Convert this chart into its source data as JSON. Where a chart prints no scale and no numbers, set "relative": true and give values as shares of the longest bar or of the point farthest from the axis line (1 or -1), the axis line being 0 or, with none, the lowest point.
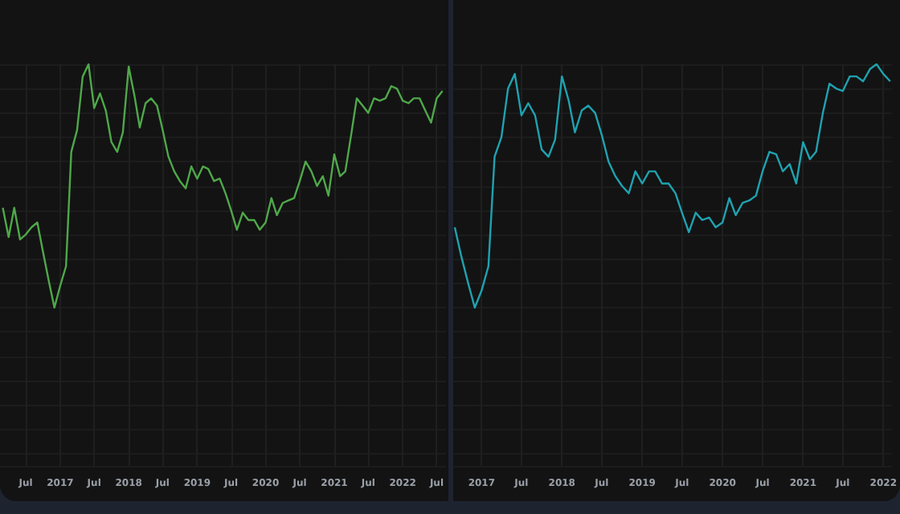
{
  "chart_data": [
    {
      "type": "line",
      "relative": true,
      "grid": true,
      "marker": "none",
      "line_style": "solid",
      "xlim": [
        "2016-02-15",
        "2022-08-20"
      ],
      "xticks": [
        {
          "value": "2016-07",
          "label": "Jul"
        },
        {
          "value": "2017-01",
          "label": "2017"
        },
        {
          "value": "2017-07",
          "label": "Jul"
        },
        {
          "value": "2018-01",
          "label": "2018"
        },
        {
          "value": "2018-07",
          "label": "Jul"
        },
        {
          "value": "2019-01",
          "label": "2019"
        },
        {
          "value": "2019-07",
          "label": "Jul"
        },
        {
          "value": "2020-01",
          "label": "2020"
        },
        {
          "value": "2020-07",
          "label": "Jul"
        },
        {
          "value": "2021-01",
          "label": "2021"
        },
        {
          "value": "2021-07",
          "label": "Jul"
        },
        {
          "value": "2022-01",
          "label": "2022"
        },
        {
          "value": "2022-07",
          "label": "Jul"
        }
      ],
      "x": [
        "2016-03",
        "2016-04",
        "2016-05",
        "2016-06",
        "2016-07",
        "2016-08",
        "2016-09",
        "2016-10",
        "2016-11",
        "2016-12",
        "2017-01",
        "2017-02",
        "2017-03",
        "2017-04",
        "2017-05",
        "2017-06",
        "2017-07",
        "2017-08",
        "2017-09",
        "2017-10",
        "2017-11",
        "2017-12",
        "2018-01",
        "2018-02",
        "2018-03",
        "2018-04",
        "2018-05",
        "2018-06",
        "2018-07",
        "2018-08",
        "2018-09",
        "2018-10",
        "2018-11",
        "2018-12",
        "2019-01",
        "2019-02",
        "2019-03",
        "2019-04",
        "2019-05",
        "2019-06",
        "2019-07",
        "2019-08",
        "2019-09",
        "2019-10",
        "2019-11",
        "2019-12",
        "2020-01",
        "2020-02",
        "2020-03",
        "2020-04",
        "2020-05",
        "2020-06",
        "2020-07",
        "2020-08",
        "2020-09",
        "2020-10",
        "2020-11",
        "2020-12",
        "2021-01",
        "2021-02",
        "2021-03",
        "2021-04",
        "2021-05",
        "2021-06",
        "2021-07",
        "2021-08",
        "2021-09",
        "2021-10",
        "2021-11",
        "2021-12",
        "2022-01",
        "2022-02",
        "2022-03",
        "2022-04",
        "2022-05",
        "2022-06",
        "2022-07",
        "2022-08"
      ],
      "series": [
        {
          "color": "#4fa84a",
          "values": [
            0.41,
            0.29,
            0.41,
            0.28,
            0.3,
            0.33,
            0.35,
            0.23,
            0.11,
            0,
            0.09,
            0.17,
            0.64,
            0.73,
            0.95,
            1,
            0.82,
            0.88,
            0.81,
            0.68,
            0.64,
            0.72,
            0.99,
            0.87,
            0.74,
            0.84,
            0.86,
            0.83,
            0.73,
            0.62,
            0.56,
            0.52,
            0.49,
            0.58,
            0.53,
            0.58,
            0.57,
            0.52,
            0.53,
            0.47,
            0.4,
            0.32,
            0.39,
            0.36,
            0.36,
            0.32,
            0.35,
            0.45,
            0.38,
            0.43,
            0.44,
            0.45,
            0.52,
            0.6,
            0.56,
            0.5,
            0.54,
            0.46,
            0.63,
            0.54,
            0.56,
            0.71,
            0.86,
            0.83,
            0.8,
            0.86,
            0.85,
            0.86,
            0.91,
            0.9,
            0.85,
            0.84,
            0.86,
            0.86,
            0.81,
            0.76,
            0.86,
            0.89
          ]
        }
      ]
    },
    {
      "type": "line",
      "relative": true,
      "grid": true,
      "marker": "none",
      "line_style": "solid",
      "xlim": [
        "2016-08-25",
        "2022-02-08"
      ],
      "xticks": [
        {
          "value": "2017-01",
          "label": "2017"
        },
        {
          "value": "2017-07",
          "label": "Jul"
        },
        {
          "value": "2018-01",
          "label": "2018"
        },
        {
          "value": "2018-07",
          "label": "Jul"
        },
        {
          "value": "2019-01",
          "label": "2019"
        },
        {
          "value": "2019-07",
          "label": "Jul"
        },
        {
          "value": "2020-01",
          "label": "2020"
        },
        {
          "value": "2020-07",
          "label": "Jul"
        },
        {
          "value": "2021-01",
          "label": "2021"
        },
        {
          "value": "2021-07",
          "label": "Jul"
        },
        {
          "value": "2022-01",
          "label": "2022"
        }
      ],
      "x": [
        "2016-09",
        "2016-10",
        "2016-11",
        "2016-12",
        "2017-01",
        "2017-02",
        "2017-03",
        "2017-04",
        "2017-05",
        "2017-06",
        "2017-07",
        "2017-08",
        "2017-09",
        "2017-10",
        "2017-11",
        "2017-12",
        "2018-01",
        "2018-02",
        "2018-03",
        "2018-04",
        "2018-05",
        "2018-06",
        "2018-07",
        "2018-08",
        "2018-09",
        "2018-10",
        "2018-11",
        "2018-12",
        "2019-01",
        "2019-02",
        "2019-03",
        "2019-04",
        "2019-05",
        "2019-06",
        "2019-07",
        "2019-08",
        "2019-09",
        "2019-10",
        "2019-11",
        "2019-12",
        "2020-01",
        "2020-02",
        "2020-03",
        "2020-04",
        "2020-05",
        "2020-06",
        "2020-07",
        "2020-08",
        "2020-09",
        "2020-10",
        "2020-11",
        "2020-12",
        "2021-01",
        "2021-02",
        "2021-03",
        "2021-04",
        "2021-05",
        "2021-06",
        "2021-07",
        "2021-08",
        "2021-09",
        "2021-10",
        "2021-11",
        "2021-12",
        "2022-01",
        "2022-02"
      ],
      "series": [
        {
          "color": "#1fa2b0",
          "values": [
            0.33,
            0.21,
            0.1,
            0,
            0.07,
            0.17,
            0.62,
            0.7,
            0.9,
            0.96,
            0.79,
            0.84,
            0.79,
            0.65,
            0.62,
            0.69,
            0.95,
            0.85,
            0.72,
            0.81,
            0.83,
            0.8,
            0.71,
            0.6,
            0.54,
            0.5,
            0.47,
            0.56,
            0.51,
            0.56,
            0.56,
            0.51,
            0.51,
            0.47,
            0.39,
            0.31,
            0.39,
            0.36,
            0.37,
            0.33,
            0.35,
            0.45,
            0.38,
            0.43,
            0.44,
            0.46,
            0.56,
            0.64,
            0.63,
            0.56,
            0.59,
            0.51,
            0.68,
            0.61,
            0.64,
            0.8,
            0.92,
            0.9,
            0.89,
            0.95,
            0.95,
            0.93,
            0.98,
            1,
            0.96,
            0.93
          ]
        }
      ]
    }
  ]
}
